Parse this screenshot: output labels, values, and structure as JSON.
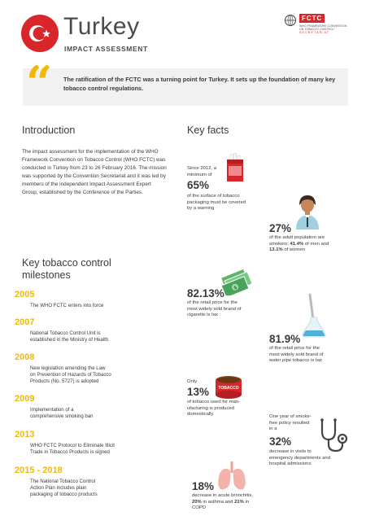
{
  "header": {
    "country": "Turkey",
    "subtitle": "IMPACT ASSESSMENT",
    "logo_text": "FCTC",
    "logo_line1": "WHO FRAMEWORK CONVENTION",
    "logo_line2": "ON TOBACCO CONTROL",
    "logo_secretariat": "SECRETARIAT"
  },
  "quote": "The ratification of the FCTC was a turning point for Turkey. It sets up the foundation of many key tobacco control regulations.",
  "intro": {
    "heading": "Introduction",
    "text": "The impact assessment for the implementation of the WHO Framework Convention on Tobacco Control (WHO FCTC) was conducted in Turkey from 23 to 26 February 2016. The mission was supported by the Convention Secretariat and it was led by members of the independent Impact Assessment Expert Group, established by the Conference of the Parties."
  },
  "milestones": {
    "heading_line1": "Key tobacco control",
    "heading_line2": "milestones",
    "items": [
      {
        "year": "2005",
        "line1": "The WHO FCTC enters into force",
        "line2": "",
        "line3": ""
      },
      {
        "year": "2007",
        "line1": "National Tobacco Control Unit is",
        "line2": "established in the Ministry of Health",
        "line3": ""
      },
      {
        "year": "2008",
        "line1": "New legislation amending the Law",
        "line2": "on Prevention of Hazards of Tobacco",
        "line3": "Products (No. 5727) is adopted"
      },
      {
        "year": "2009",
        "line1": "Implementation of a",
        "line2": "comprehensive smoking ban",
        "line3": ""
      },
      {
        "year": "2013",
        "line1": "WHO FCTC Protocol to Eliminate Illicit",
        "line2": "Trade in Tobacco Products is signed",
        "line3": ""
      },
      {
        "year": "2015 - 2018",
        "line1": "The National Tobacco Control",
        "line2": "Action Plan includes plain",
        "line3": "packaging of tobacco products"
      }
    ]
  },
  "key_facts": {
    "heading": "Key facts",
    "warning": {
      "pre1": "Since 2012, a",
      "pre2": "minimum of",
      "value": "65%",
      "post1": "of the surface of tobacco",
      "post2": "packaging must be covered",
      "post3": "by a warning"
    },
    "smokers": {
      "value": "27%",
      "line1": "of the adult population are",
      "line2a": "smokers; ",
      "line2b": "41.4%",
      "line2c": " of men and",
      "line3a": "13.1%",
      "line3b": " of women"
    },
    "cig_tax": {
      "value": "82.13%",
      "line1": "of the retail price for the",
      "line2": "most widely sold brand of",
      "line3": "cigarette is tax"
    },
    "pipe_tax": {
      "value": "81.9%",
      "line1": "of the retail price for the",
      "line2": "most widely sold brand of",
      "line3": "water pipe tobacco is tax"
    },
    "domestic": {
      "pre": "Only",
      "value": "13%",
      "line1": "of tobacco used for man-",
      "line2": "ufacturing is produced",
      "line3": "domestically",
      "tin_label": "TOBACCO"
    },
    "visits": {
      "pre1": "One year of smoke-",
      "pre2": "free policy resulted",
      "pre3": "in a",
      "value": "32%",
      "line1": "decrease in visits to",
      "line2": "emergency departments and",
      "line3": "hospital admissions"
    },
    "bronchitis": {
      "value": "18%",
      "line1": "decrease in acute bronchitis,",
      "line2a": "20%",
      "line2b": " in asthma and ",
      "line2c": "21%",
      "line2d": " in",
      "line3": "COPD"
    }
  },
  "colors": {
    "accent_red": "#d8262b",
    "accent_yellow": "#f5b800"
  }
}
